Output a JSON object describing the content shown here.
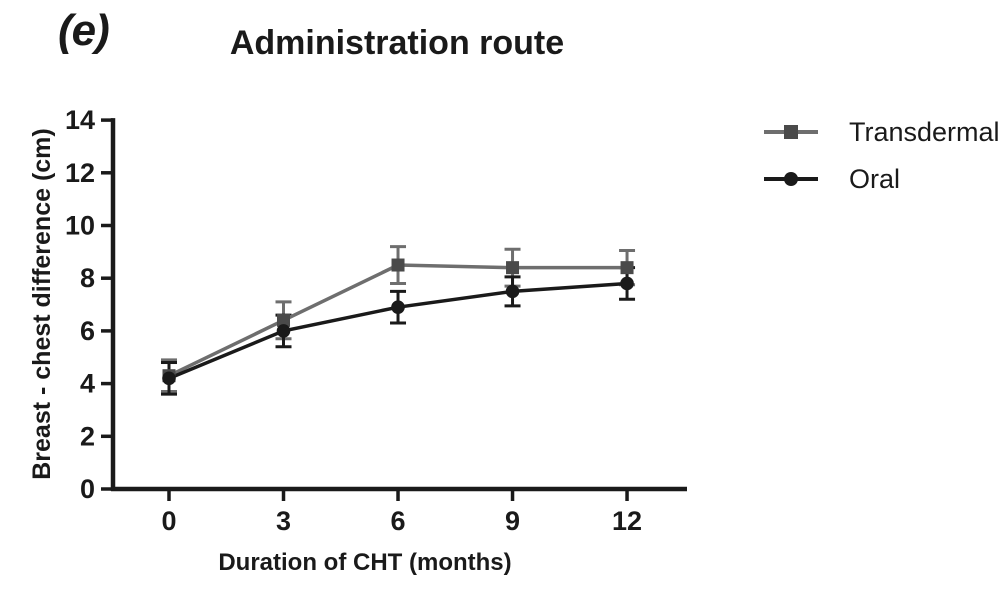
{
  "panel_label": "(e)",
  "colors": {
    "axis": "#1a1a1a",
    "transdermal": "#6e6e6e",
    "transdermal_marker": "#4a4a4a",
    "oral": "#1a1a1a"
  },
  "chart_data": {
    "type": "line",
    "title": "Administration route",
    "xlabel": "Duration of CHT (months)",
    "ylabel": "Breast - chest difference (cm)",
    "x": [
      0,
      3,
      6,
      9,
      12
    ],
    "xticks": [
      0,
      3,
      6,
      9,
      12
    ],
    "yticks": [
      0,
      2,
      4,
      6,
      8,
      10,
      12,
      14
    ],
    "ylim": [
      0,
      14
    ],
    "xlim": [
      -1.5,
      13.6
    ],
    "grid": false,
    "error_bars": true,
    "legend_position": "right",
    "series": [
      {
        "name": "Transdermal",
        "marker": "square",
        "color": "#6e6e6e",
        "marker_color": "#4a4a4a",
        "values": [
          4.3,
          6.4,
          8.5,
          8.4,
          8.4
        ],
        "errors": [
          0.6,
          0.7,
          0.7,
          0.7,
          0.65
        ]
      },
      {
        "name": "Oral",
        "marker": "circle",
        "color": "#1a1a1a",
        "marker_color": "#1a1a1a",
        "values": [
          4.2,
          6.0,
          6.9,
          7.5,
          7.8
        ],
        "errors": [
          0.6,
          0.6,
          0.6,
          0.55,
          0.6
        ]
      }
    ]
  }
}
